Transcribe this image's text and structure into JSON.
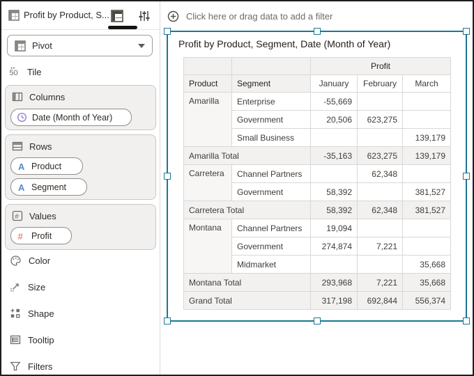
{
  "sidebar": {
    "title": "Profit by Product, S...",
    "viz_type": {
      "selected": "Pivot"
    },
    "tile_label": "Tile",
    "sections": [
      {
        "label": "Columns",
        "pills": [
          {
            "label": "Date (Month of Year)",
            "icon": "clock-icon"
          }
        ]
      },
      {
        "label": "Rows",
        "pills": [
          {
            "label": "Product",
            "icon": "text-attribute-icon"
          },
          {
            "label": "Segment",
            "icon": "text-attribute-icon"
          }
        ]
      },
      {
        "label": "Values",
        "pills": [
          {
            "label": "Profit",
            "icon": "number-measure-icon"
          }
        ]
      }
    ],
    "options": [
      {
        "label": "Color",
        "icon": "color-palette-icon"
      },
      {
        "label": "Size",
        "icon": "size-icon"
      },
      {
        "label": "Shape",
        "icon": "shape-icon"
      },
      {
        "label": "Tooltip",
        "icon": "tooltip-icon"
      },
      {
        "label": "Filters",
        "icon": "filter-funnel-icon"
      }
    ]
  },
  "filter_bar": {
    "label": "Click here or drag data to add a filter",
    "icon": "plus-circle-icon"
  },
  "viz": {
    "title": "Profit by Product, Segment, Date (Month of Year)",
    "table": {
      "measure_header": "Profit",
      "col_headers": [
        "Product",
        "Segment",
        "January",
        "February",
        "March"
      ],
      "rows": [
        {
          "type": "data",
          "product": "Amarilla",
          "product_span": 3,
          "segment": "Enterprise",
          "values": [
            "-55,669",
            "",
            ""
          ]
        },
        {
          "type": "data",
          "segment": "Government",
          "values": [
            "20,506",
            "623,275",
            ""
          ]
        },
        {
          "type": "data",
          "segment": "Small Business",
          "values": [
            "",
            "",
            "139,179"
          ]
        },
        {
          "type": "total",
          "label": "Amarilla Total",
          "values": [
            "-35,163",
            "623,275",
            "139,179"
          ]
        },
        {
          "type": "data",
          "product": "Carretera",
          "product_span": 2,
          "segment": "Channel Partners",
          "values": [
            "",
            "62,348",
            ""
          ]
        },
        {
          "type": "data",
          "segment": "Government",
          "values": [
            "58,392",
            "",
            "381,527"
          ]
        },
        {
          "type": "total",
          "label": "Carretera Total",
          "values": [
            "58,392",
            "62,348",
            "381,527"
          ]
        },
        {
          "type": "data",
          "product": "Montana",
          "product_span": 3,
          "segment": "Channel Partners",
          "values": [
            "19,094",
            "",
            ""
          ]
        },
        {
          "type": "data",
          "segment": "Government",
          "values": [
            "274,874",
            "7,221",
            ""
          ]
        },
        {
          "type": "data",
          "segment": "Midmarket",
          "values": [
            "",
            "",
            "35,668"
          ]
        },
        {
          "type": "total",
          "label": "Montana Total",
          "values": [
            "293,968",
            "7,221",
            "35,668"
          ]
        },
        {
          "type": "total",
          "label": "Grand Total",
          "values": [
            "317,198",
            "692,844",
            "556,374"
          ]
        }
      ]
    }
  },
  "colors": {
    "selection_teal": "#1a7893",
    "attribute_blue": "#5a87c7",
    "time_purple": "#9b7fd4",
    "measure_red": "#e4604e",
    "header_gray": "#f2f1f0",
    "tab_indicator": "#141414"
  },
  "icons": {
    "pivot": "pivot-grid-icon",
    "grammar_panel": "grammar-panel-icon",
    "properties": "sliders-icon",
    "tile": "tile-50-icon",
    "columns": "columns-icon",
    "rows": "rows-icon",
    "values": "values-hash-icon",
    "dropdown": "chevron-down-icon"
  }
}
